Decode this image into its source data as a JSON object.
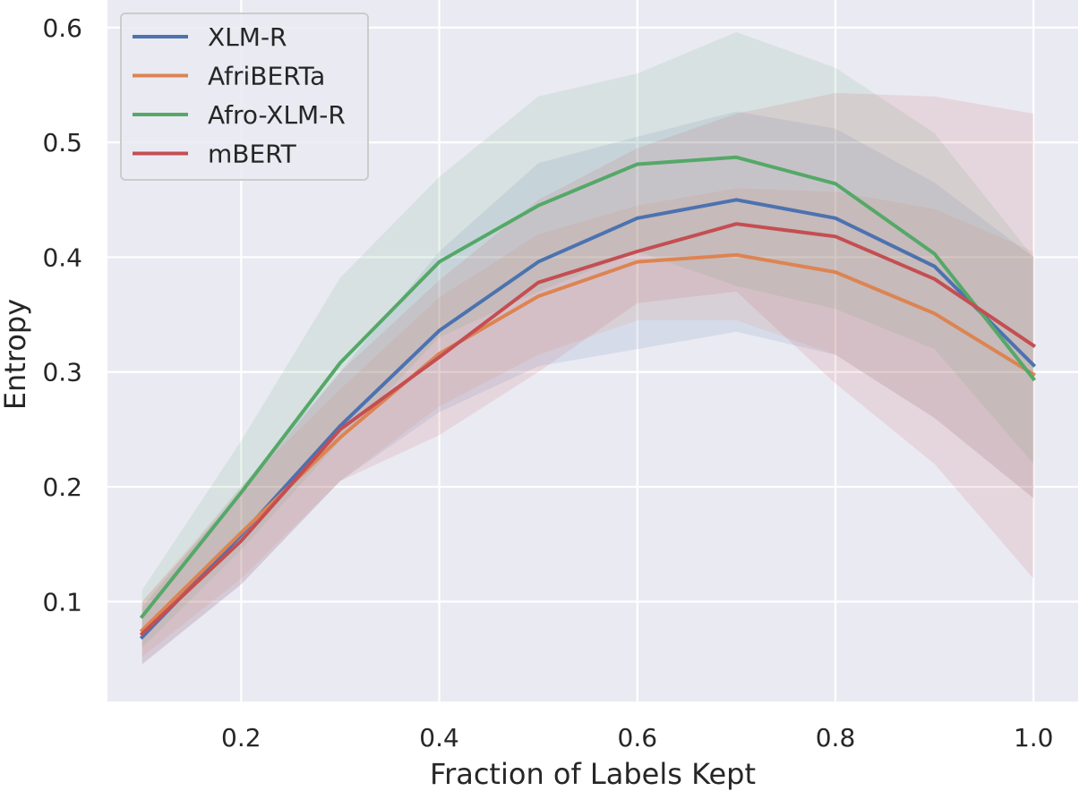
{
  "chart_data": {
    "type": "line",
    "xlabel": "Fraction of Labels Kept",
    "ylabel": "Entropy",
    "xlim": [
      0.065,
      1.045
    ],
    "ylim": [
      0.013,
      0.624
    ],
    "xticks": [
      0.2,
      0.4,
      0.6,
      0.8,
      1.0
    ],
    "xtick_labels": [
      "0.2",
      "0.4",
      "0.6",
      "0.8",
      "1.0"
    ],
    "yticks": [
      0.1,
      0.2,
      0.3,
      0.4,
      0.5,
      0.6
    ],
    "ytick_labels": [
      "0.1",
      "0.2",
      "0.3",
      "0.4",
      "0.5",
      "0.6"
    ],
    "grid": true,
    "legend_position": "top-left",
    "background_color": "#eaeaf2",
    "x": [
      0.1,
      0.2,
      0.3,
      0.4,
      0.5,
      0.6,
      0.7,
      0.8,
      0.9,
      1.0
    ],
    "series": [
      {
        "name": "XLM-R",
        "color": "#4c72b0",
        "values": [
          0.069,
          0.158,
          0.253,
          0.336,
          0.396,
          0.434,
          0.45,
          0.434,
          0.392,
          0.306
        ],
        "lower": [
          0.046,
          0.115,
          0.205,
          0.265,
          0.305,
          0.32,
          0.335,
          0.315,
          0.26,
          0.19
        ],
        "upper": [
          0.095,
          0.2,
          0.3,
          0.405,
          0.482,
          0.505,
          0.527,
          0.512,
          0.465,
          0.4
        ]
      },
      {
        "name": "AfriBERTa",
        "color": "#dd8452",
        "values": [
          0.075,
          0.16,
          0.243,
          0.316,
          0.366,
          0.396,
          0.402,
          0.387,
          0.351,
          0.298
        ],
        "lower": [
          0.052,
          0.12,
          0.205,
          0.27,
          0.315,
          0.345,
          0.345,
          0.315,
          0.26,
          0.19
        ],
        "upper": [
          0.1,
          0.2,
          0.285,
          0.365,
          0.42,
          0.445,
          0.46,
          0.457,
          0.442,
          0.405
        ]
      },
      {
        "name": "Afro-XLM-R",
        "color": "#55a868",
        "values": [
          0.087,
          0.195,
          0.308,
          0.396,
          0.445,
          0.481,
          0.487,
          0.464,
          0.403,
          0.294
        ],
        "lower": [
          0.06,
          0.145,
          0.24,
          0.33,
          0.37,
          0.405,
          0.375,
          0.355,
          0.32,
          0.22
        ],
        "upper": [
          0.11,
          0.24,
          0.382,
          0.47,
          0.54,
          0.56,
          0.596,
          0.565,
          0.508,
          0.4
        ]
      },
      {
        "name": "mBERT",
        "color": "#c44e52",
        "values": [
          0.072,
          0.153,
          0.25,
          0.313,
          0.378,
          0.405,
          0.429,
          0.418,
          0.381,
          0.323
        ],
        "lower": [
          0.045,
          0.115,
          0.205,
          0.245,
          0.3,
          0.36,
          0.37,
          0.29,
          0.22,
          0.12
        ],
        "upper": [
          0.1,
          0.195,
          0.3,
          0.38,
          0.45,
          0.495,
          0.525,
          0.543,
          0.54,
          0.525
        ]
      }
    ]
  }
}
